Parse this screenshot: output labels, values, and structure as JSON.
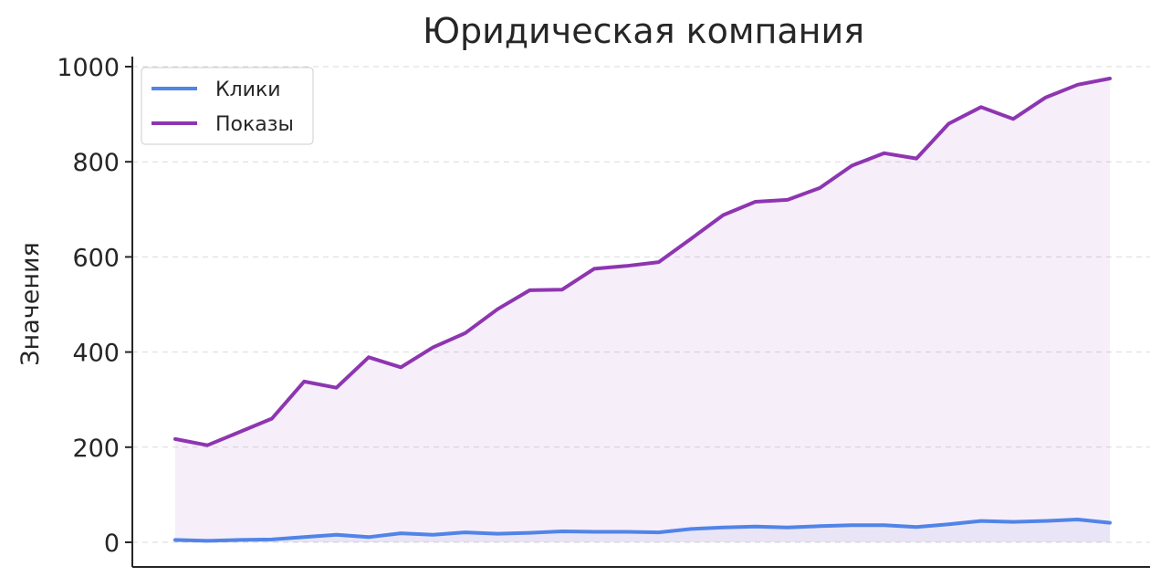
{
  "chart_data": {
    "type": "line",
    "title": "Юридическая компания",
    "xlabel": "",
    "ylabel": "Значения",
    "ylim": [
      0,
      1000
    ],
    "yticks": [
      0,
      200,
      400,
      600,
      800,
      1000
    ],
    "grid": true,
    "legend_position": "top-left",
    "x": [
      1,
      2,
      3,
      4,
      5,
      6,
      7,
      8,
      9,
      10,
      11,
      12,
      13,
      14,
      15,
      16,
      17,
      18,
      19,
      20,
      21,
      22,
      23,
      24,
      25,
      26,
      27,
      28,
      29,
      30
    ],
    "series": [
      {
        "name": "Клики",
        "color": "#5184e8",
        "area": true,
        "values": [
          5,
          3,
          5,
          6,
          11,
          16,
          11,
          19,
          16,
          21,
          18,
          20,
          23,
          22,
          22,
          21,
          28,
          31,
          33,
          31,
          34,
          36,
          36,
          32,
          38,
          45,
          43,
          45,
          48,
          41
        ]
      },
      {
        "name": "Показы",
        "color": "#8e35b1",
        "area": true,
        "values": [
          217,
          204,
          232,
          260,
          338,
          325,
          389,
          368,
          410,
          440,
          490,
          530,
          531,
          575,
          581,
          589,
          638,
          688,
          716,
          720,
          745,
          792,
          818,
          807,
          880,
          915,
          890,
          935,
          962,
          975
        ]
      }
    ]
  }
}
